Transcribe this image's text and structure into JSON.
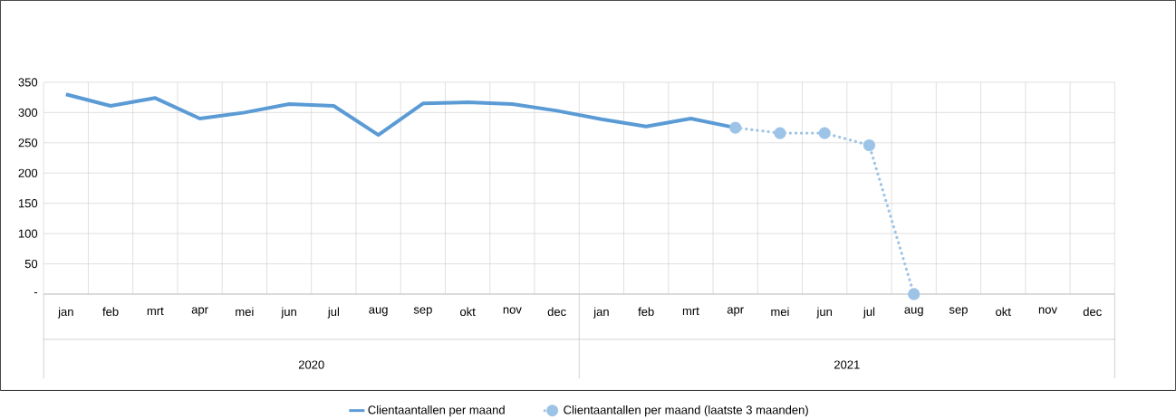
{
  "chart_data": {
    "type": "line",
    "categories": [
      "jan",
      "feb",
      "mrt",
      "apr",
      "mei",
      "jun",
      "jul",
      "aug",
      "sep",
      "okt",
      "nov",
      "dec",
      "jan",
      "feb",
      "mrt",
      "apr",
      "mei",
      "jun",
      "jul",
      "aug",
      "sep",
      "okt",
      "nov",
      "dec"
    ],
    "series": [
      {
        "name": "Clientaantallen per maand",
        "color": "#5b9bd5",
        "line_style": "solid",
        "marker": "none",
        "values": [
          330,
          311,
          324,
          290,
          300,
          314,
          311,
          263,
          315,
          317,
          314,
          303,
          289,
          277,
          290,
          275,
          null,
          null,
          null,
          null,
          null,
          null,
          null,
          null
        ]
      },
      {
        "name": "Clientaantallen per maand (laatste 3 maanden)",
        "color": "#9dc3e6",
        "line_style": "dotted",
        "marker": "circle",
        "values": [
          null,
          null,
          null,
          null,
          null,
          null,
          null,
          null,
          null,
          null,
          null,
          null,
          null,
          null,
          null,
          275,
          266,
          266,
          246,
          0,
          null,
          null,
          null,
          null
        ]
      }
    ],
    "ylim": [
      0,
      350
    ],
    "yticks": [
      {
        "value": 0,
        "label": "-"
      },
      50,
      100,
      150,
      200,
      250,
      300,
      350
    ],
    "annotations": [
      "2020",
      "2021"
    ],
    "grid": true,
    "legend": "bottom"
  }
}
